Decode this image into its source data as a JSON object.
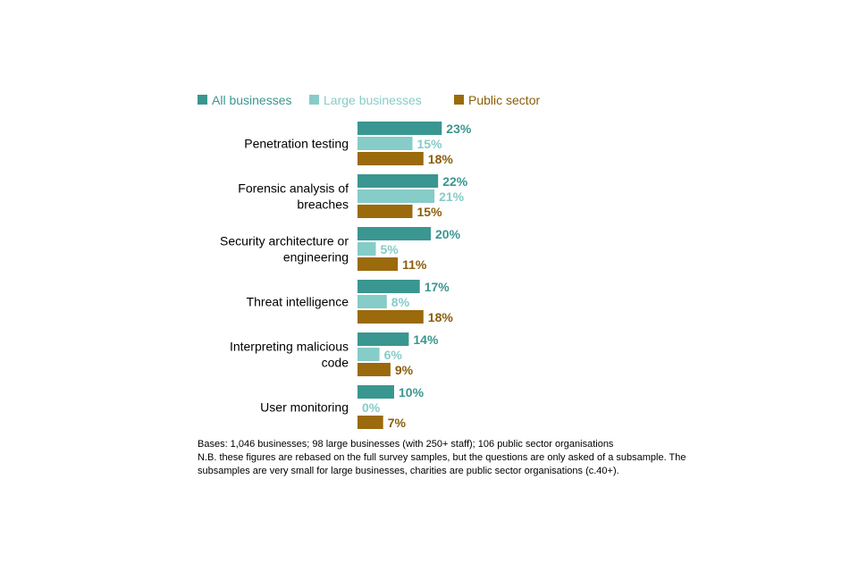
{
  "chart_data": {
    "type": "bar",
    "orientation": "horizontal",
    "categories": [
      [
        "Penetration testing"
      ],
      [
        "Forensic analysis of",
        "breaches"
      ],
      [
        "Security architecture or",
        "engineering"
      ],
      [
        "Threat intelligence"
      ],
      [
        "Interpreting malicious",
        "code"
      ],
      [
        "User monitoring"
      ]
    ],
    "series": [
      {
        "name": "All businesses",
        "values": [
          23,
          22,
          20,
          17,
          14,
          10
        ],
        "color": "#3a9690",
        "label_color": "#3a9690"
      },
      {
        "name": "Large businesses",
        "values": [
          15,
          21,
          5,
          8,
          6,
          0
        ],
        "color": "#86ccc8",
        "label_color": "#86ccc8"
      },
      {
        "name": "Public sector",
        "values": [
          18,
          15,
          11,
          18,
          9,
          7
        ],
        "color": "#9a6a0c",
        "label_color": "#8a5e0a"
      }
    ],
    "value_suffix": "%",
    "legend_position": "top",
    "grid": false
  },
  "notes": [
    "Bases: 1,046 businesses; 98 large businesses (with 250+ staff); 106 public sector organisations",
    "N.B. these figures are rebased on the full survey samples, but the questions are only asked of a subsample. The",
    "subsamples are very small for large businesses, charities are public sector organisations (c.40+)."
  ]
}
